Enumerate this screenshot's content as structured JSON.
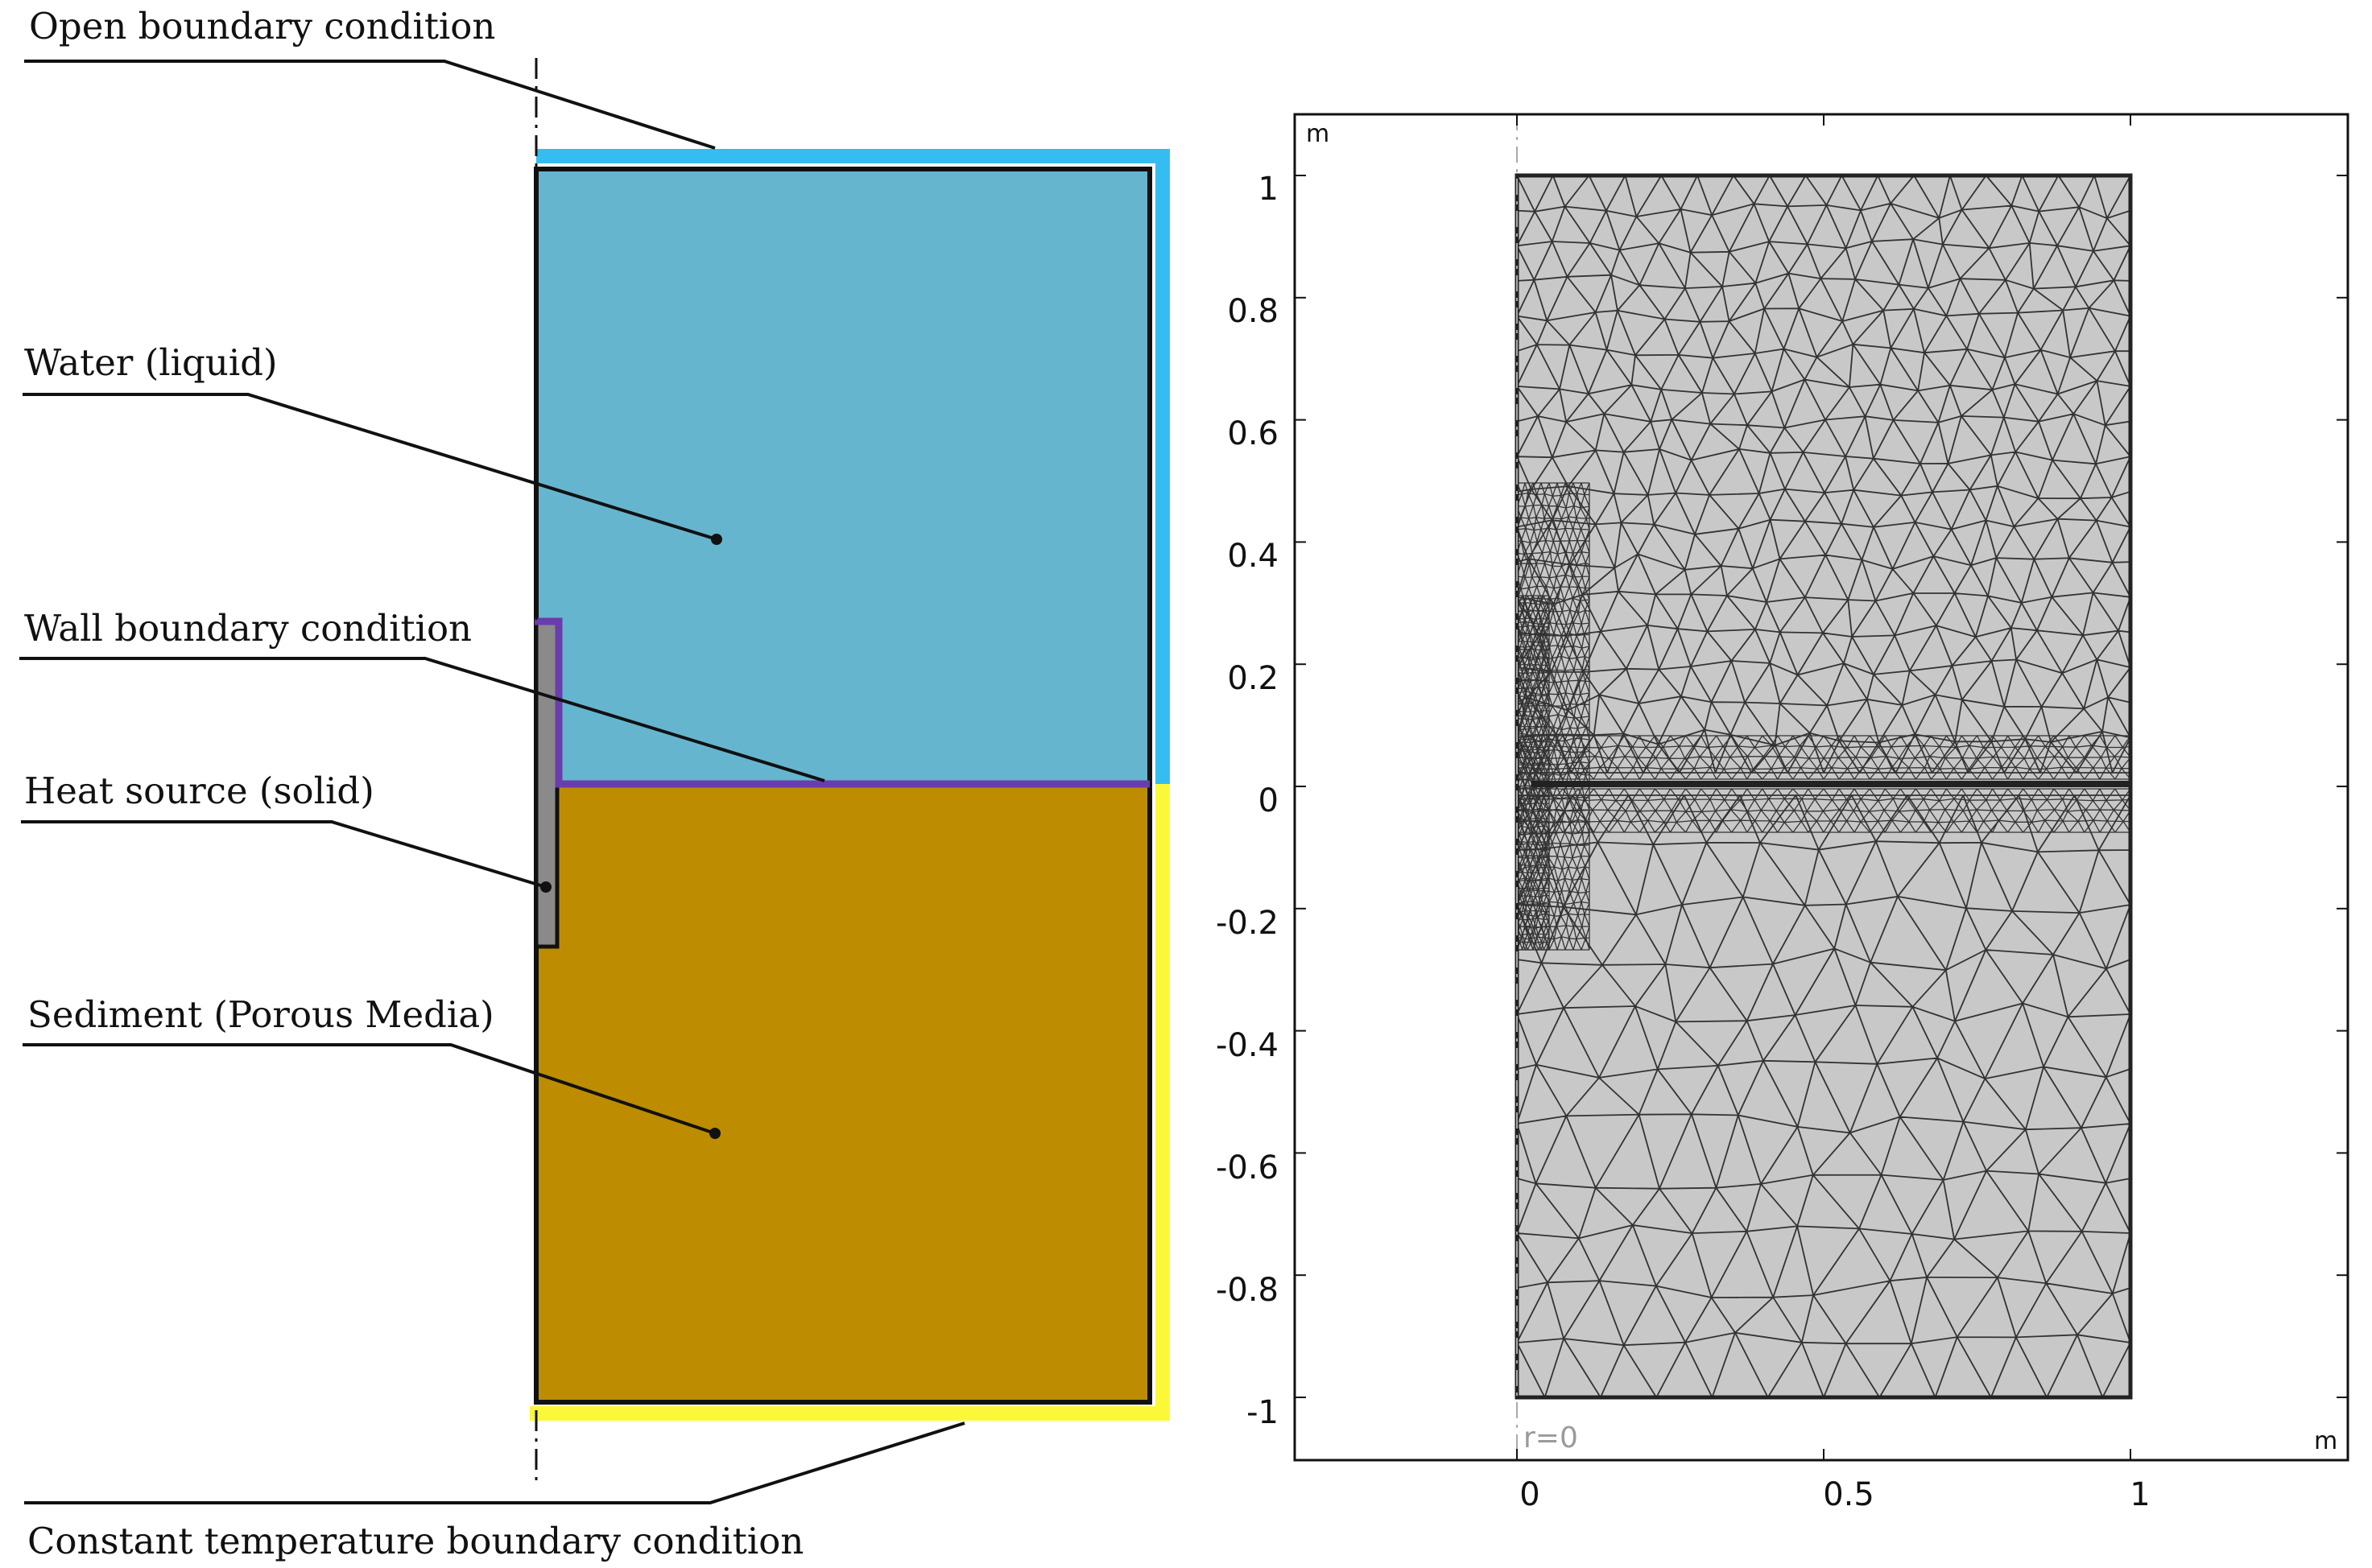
{
  "left_schematic": {
    "labels": {
      "open_boundary": "Open boundary condition",
      "water": "Water (liquid)",
      "wall_boundary": "Wall boundary condition",
      "heat_source": "Heat source (solid)",
      "sediment": "Sediment (Porous Media)",
      "constant_temperature": "Constant temperature boundary condition"
    },
    "colors": {
      "water": "#66b5cf",
      "sediment": "#bd8c00",
      "open_boundary": "#35bdf2",
      "constant_temperature_boundary": "#fbf83a",
      "wall_boundary": "#6a3cad",
      "heat_source": "#8a8a8a"
    }
  },
  "right_mesh": {
    "domain_fill": "#c8c8c8",
    "mesh_line_color": "#333333",
    "unit_label": "m",
    "x_ticks": [
      "0",
      "0.5",
      "1"
    ],
    "y_ticks": [
      "1",
      "0.8",
      "0.6",
      "0.4",
      "0.2",
      "0",
      "-0.2",
      "-0.4",
      "-0.6",
      "-0.8",
      "-1"
    ],
    "axis_note": "r=0"
  }
}
